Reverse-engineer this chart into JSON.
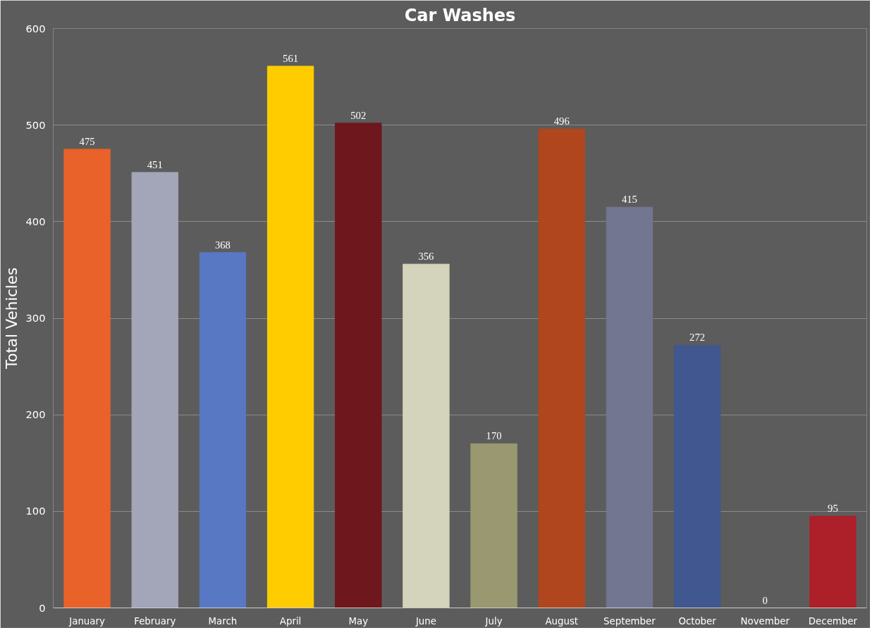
{
  "chart_data": {
    "type": "bar",
    "title": "Car Washes",
    "ylabel": "Total Vehicles",
    "categories": [
      "January",
      "February",
      "March",
      "April",
      "May",
      "June",
      "July",
      "August",
      "September",
      "October",
      "November",
      "December"
    ],
    "values": [
      475,
      451,
      368,
      561,
      502,
      356,
      170,
      496,
      415,
      272,
      0,
      95
    ],
    "colors": [
      "#e8622a",
      "#a3a5b8",
      "#5878c4",
      "#ffcc00",
      "#6e171c",
      "#d3d4bb",
      "#9a9870",
      "#b0461e",
      "#727690",
      "#41578f",
      "#808080",
      "#ad1f29"
    ],
    "ylim": [
      0,
      600
    ],
    "yticks": [
      0,
      100,
      200,
      300,
      400,
      500,
      600
    ],
    "grid": "y",
    "data_labels": true
  }
}
